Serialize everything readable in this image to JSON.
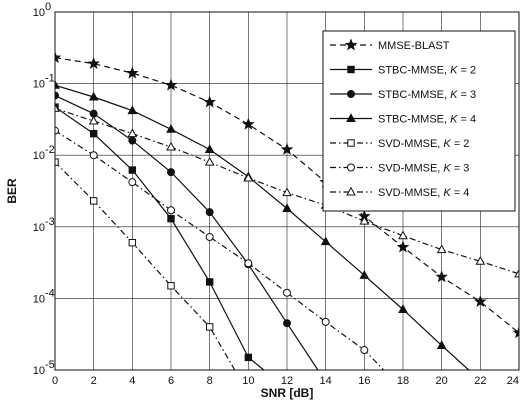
{
  "chart_data": {
    "type": "line",
    "title": "",
    "xlabel": "SNR [dB]",
    "ylabel": "BER",
    "xlim": [
      0,
      24
    ],
    "ylim": [
      1e-05,
      1
    ],
    "yscale": "log",
    "grid": true,
    "legend_position": "top-right",
    "x_ticks": [
      "0",
      "2",
      "4",
      "6",
      "8",
      "10",
      "12",
      "14",
      "16",
      "18",
      "20",
      "22",
      "24"
    ],
    "y_ticks": [
      {
        "value": 1,
        "base": "10",
        "exp": "0"
      },
      {
        "value": 0.1,
        "base": "10",
        "exp": "-1"
      },
      {
        "value": 0.01,
        "base": "10",
        "exp": "-2"
      },
      {
        "value": 0.001,
        "base": "10",
        "exp": "-3"
      },
      {
        "value": 0.0001,
        "base": "10",
        "exp": "-4"
      },
      {
        "value": 1e-05,
        "base": "10",
        "exp": "-5"
      }
    ],
    "series": [
      {
        "name": "MMSE-BLAST",
        "marker": "star",
        "dash": "dashed",
        "color": "#111111",
        "x": [
          0,
          2,
          4,
          6,
          8,
          10,
          12,
          14,
          16,
          18,
          20,
          22,
          24
        ],
        "y": [
          0.23,
          0.19,
          0.14,
          0.095,
          0.055,
          0.027,
          0.012,
          0.0042,
          0.0014,
          0.00052,
          0.0002,
          9e-05,
          3.3e-05
        ]
      },
      {
        "name": "STBC-MMSE, ",
        "k": "2",
        "marker": "square-filled",
        "dash": "solid",
        "color": "#111111",
        "x": [
          0,
          2,
          4,
          6,
          8,
          10,
          10.8
        ],
        "y": [
          0.047,
          0.02,
          0.0062,
          0.0013,
          0.00017,
          1.5e-05,
          1e-05
        ]
      },
      {
        "name": "STBC-MMSE, ",
        "k": "3",
        "marker": "circle-filled",
        "dash": "solid",
        "color": "#111111",
        "x": [
          0,
          2,
          4,
          6,
          8,
          10,
          12,
          13.6
        ],
        "y": [
          0.068,
          0.038,
          0.016,
          0.0058,
          0.0016,
          0.0003,
          4.5e-05,
          1e-05
        ]
      },
      {
        "name": "STBC-MMSE, ",
        "k": "4",
        "marker": "triangle-filled",
        "dash": "solid",
        "color": "#111111",
        "x": [
          0,
          2,
          4,
          6,
          8,
          10,
          12,
          14,
          16,
          18,
          20,
          21.4
        ],
        "y": [
          0.095,
          0.065,
          0.042,
          0.023,
          0.012,
          0.005,
          0.0018,
          0.00062,
          0.00021,
          7e-05,
          2.2e-05,
          1e-05
        ]
      },
      {
        "name": "SVD-MMSE, ",
        "k": "2",
        "marker": "square-open",
        "dash": "dashdot",
        "color": "#111111",
        "x": [
          0,
          2,
          4,
          6,
          8,
          9.3
        ],
        "y": [
          0.008,
          0.0023,
          0.0006,
          0.00015,
          4e-05,
          1e-05
        ]
      },
      {
        "name": "SVD-MMSE, ",
        "k": "3",
        "marker": "circle-open",
        "dash": "dashdot",
        "color": "#111111",
        "x": [
          0,
          2,
          4,
          6,
          8,
          10,
          12,
          14,
          16,
          17
        ],
        "y": [
          0.022,
          0.01,
          0.0042,
          0.0017,
          0.00072,
          0.00031,
          0.00012,
          4.7e-05,
          1.9e-05,
          1e-05
        ]
      },
      {
        "name": "SVD-MMSE, ",
        "k": "4",
        "marker": "triangle-open",
        "dash": "dashdot",
        "color": "#111111",
        "x": [
          0,
          2,
          4,
          6,
          8,
          10,
          12,
          14,
          16,
          18,
          20,
          22,
          24
        ],
        "y": [
          0.045,
          0.03,
          0.02,
          0.013,
          0.008,
          0.0048,
          0.003,
          0.002,
          0.0012,
          0.00075,
          0.00048,
          0.00033,
          0.00022
        ]
      }
    ]
  }
}
